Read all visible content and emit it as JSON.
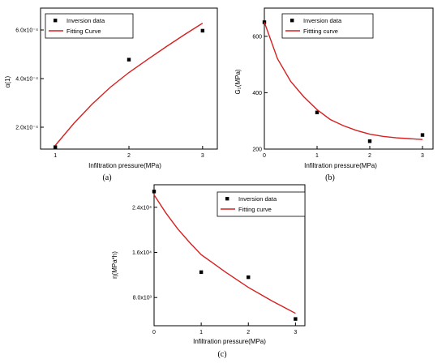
{
  "chart_data": [
    {
      "type": "scatter",
      "panel_label": "(a)",
      "xlabel": "Infiltration pressure(MPa)",
      "ylabel": "α(1)",
      "xlim": [
        0.8,
        3.2
      ],
      "ylim": [
        0.00011,
        0.00069
      ],
      "x_ticks": [
        1,
        2,
        3
      ],
      "x_tick_labels": [
        "1",
        "2",
        "3"
      ],
      "y_ticks": [
        0.0002,
        0.0004,
        0.0006
      ],
      "y_tick_labels": [
        "2.0x10⁻⁴",
        "4.0x10⁻⁴",
        "6.0x10⁻⁴"
      ],
      "legend": {
        "placement": "top-left",
        "entries": [
          "Inversion data",
          "Fitting Curve"
        ]
      },
      "series": [
        {
          "name": "Inversion data",
          "kind": "points",
          "x": [
            1,
            2,
            3
          ],
          "y": [
            0.000118,
            0.000478,
            0.000597
          ]
        },
        {
          "name": "Fitting Curve",
          "kind": "line",
          "x": [
            1,
            1.25,
            1.5,
            1.75,
            2,
            2.25,
            2.5,
            2.75,
            3
          ],
          "y": [
            0.000125,
            0.000215,
            0.000295,
            0.000365,
            0.000425,
            0.000478,
            0.00053,
            0.00058,
            0.000628
          ]
        }
      ]
    },
    {
      "type": "scatter",
      "panel_label": "(b)",
      "xlabel": "Infiltration pressure(MPa)",
      "ylabel": "G₂(MPa)",
      "xlim": [
        0,
        3.2
      ],
      "ylim": [
        200,
        700
      ],
      "x_ticks": [
        0,
        1,
        2,
        3
      ],
      "x_tick_labels": [
        "0",
        "1",
        "2",
        "3"
      ],
      "y_ticks": [
        200,
        400,
        600
      ],
      "y_tick_labels": [
        "200",
        "400",
        "600"
      ],
      "legend": {
        "placement": "top-center",
        "entries": [
          "Inversion data",
          "Fittting curve"
        ]
      },
      "series": [
        {
          "name": "Inversion data",
          "kind": "points",
          "x": [
            0,
            1,
            2,
            3
          ],
          "y": [
            650,
            330,
            228,
            250
          ]
        },
        {
          "name": "Fittting curve",
          "kind": "line",
          "x": [
            0,
            0.25,
            0.5,
            0.75,
            1,
            1.25,
            1.5,
            1.75,
            2,
            2.25,
            2.5,
            2.75,
            3
          ],
          "y": [
            650,
            520,
            440,
            385,
            340,
            305,
            283,
            266,
            253,
            245,
            240,
            237,
            234
          ]
        }
      ]
    },
    {
      "type": "scatter",
      "panel_label": "(c)",
      "xlabel": "Infiltration pressure(MPa)",
      "ylabel": "η(MPa*h)",
      "xlim": [
        0,
        3.2
      ],
      "ylim": [
        3000,
        28000
      ],
      "x_ticks": [
        0,
        1,
        2,
        3
      ],
      "x_tick_labels": [
        "0",
        "1",
        "2",
        "3"
      ],
      "y_ticks": [
        8000,
        16000,
        24000
      ],
      "y_tick_labels": [
        "8.0x10³",
        "1.6x10⁴",
        "2.4x10⁴"
      ],
      "legend": {
        "placement": "top-right",
        "entries": [
          "Inversion data",
          "Fitting curve"
        ]
      },
      "series": [
        {
          "name": "Inversion data",
          "kind": "points",
          "x": [
            0,
            1,
            2,
            3
          ],
          "y": [
            26800,
            12500,
            11600,
            4200
          ]
        },
        {
          "name": "Fitting curve",
          "kind": "line",
          "x": [
            0,
            0.25,
            0.5,
            0.75,
            1,
            1.25,
            1.5,
            1.75,
            2,
            2.25,
            2.5,
            2.75,
            3
          ],
          "y": [
            26200,
            23000,
            20200,
            17800,
            15600,
            14100,
            12600,
            11200,
            9800,
            8600,
            7400,
            6300,
            5200
          ]
        }
      ]
    }
  ]
}
